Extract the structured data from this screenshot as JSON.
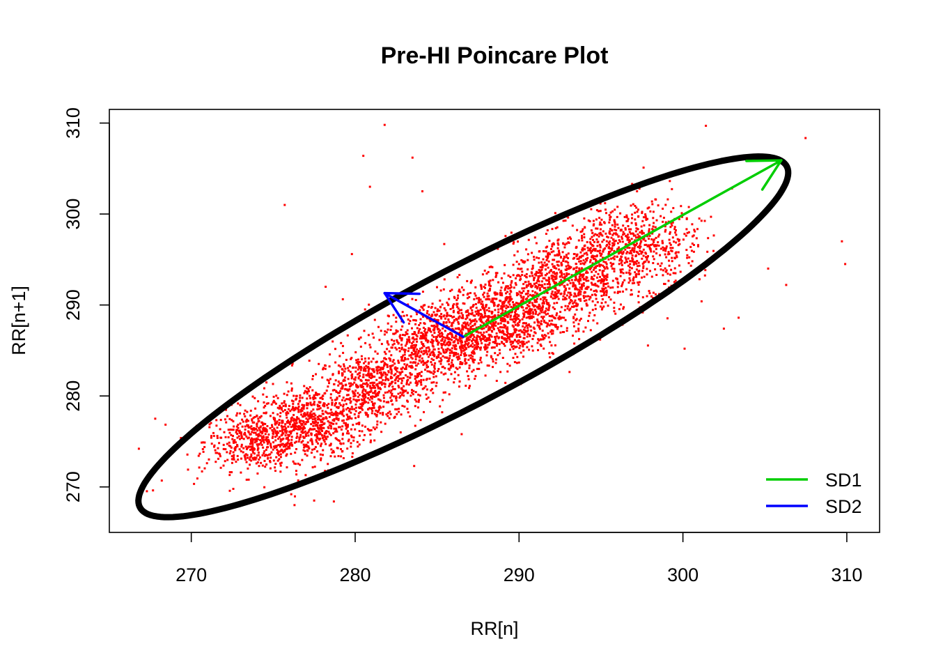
{
  "chart_data": {
    "type": "scatter",
    "title": "Pre-HI Poincare Plot",
    "xlabel": "RR[n]",
    "ylabel": "RR[n+1]",
    "xlim": [
      265,
      312
    ],
    "ylim": [
      265,
      311.5
    ],
    "xticks": [
      270,
      280,
      290,
      300,
      310
    ],
    "yticks": [
      270,
      280,
      290,
      300,
      310
    ],
    "grid": false,
    "legend_position": "bottom-right",
    "point_color": "#ff0000",
    "clusters": [
      {
        "cx": 274.0,
        "cy": 275.0,
        "sx": 1.6,
        "sy": 1.6,
        "n": 450
      },
      {
        "cx": 277.3,
        "cy": 277.0,
        "sx": 1.7,
        "sy": 2.0,
        "n": 600
      },
      {
        "cx": 281.0,
        "cy": 281.0,
        "sx": 1.6,
        "sy": 2.0,
        "n": 450
      },
      {
        "cx": 285.0,
        "cy": 286.0,
        "sx": 1.7,
        "sy": 2.2,
        "n": 550
      },
      {
        "cx": 289.0,
        "cy": 288.5,
        "sx": 1.8,
        "sy": 2.3,
        "n": 650
      },
      {
        "cx": 293.0,
        "cy": 292.5,
        "sx": 1.9,
        "sy": 2.3,
        "n": 650
      },
      {
        "cx": 297.0,
        "cy": 296.5,
        "sx": 1.9,
        "sy": 2.3,
        "n": 600
      }
    ],
    "diagonal_noise": {
      "center": 286.5,
      "along_sd": 8.5,
      "across_sd": 1.8,
      "n": 900
    },
    "outliers": [
      {
        "x": 281.8,
        "y": 309.8
      },
      {
        "x": 280.5,
        "y": 306.4
      },
      {
        "x": 283.5,
        "y": 306.2
      },
      {
        "x": 280.9,
        "y": 303.0
      },
      {
        "x": 284.1,
        "y": 302.5
      },
      {
        "x": 275.7,
        "y": 301.0
      },
      {
        "x": 301.4,
        "y": 309.7
      },
      {
        "x": 309.7,
        "y": 297.0
      },
      {
        "x": 309.9,
        "y": 294.5
      },
      {
        "x": 305.2,
        "y": 294.0
      },
      {
        "x": 306.3,
        "y": 292.2
      },
      {
        "x": 303.4,
        "y": 288.6
      },
      {
        "x": 301.0,
        "y": 299.5
      },
      {
        "x": 297.6,
        "y": 305.1
      },
      {
        "x": 266.8,
        "y": 274.2
      },
      {
        "x": 267.8,
        "y": 277.5
      },
      {
        "x": 268.2,
        "y": 270.7
      },
      {
        "x": 269.8,
        "y": 271.9
      },
      {
        "x": 276.3,
        "y": 268.0
      },
      {
        "x": 277.5,
        "y": 268.5
      },
      {
        "x": 278.7,
        "y": 268.4
      },
      {
        "x": 276.1,
        "y": 269.2
      },
      {
        "x": 286.5,
        "y": 275.8
      },
      {
        "x": 283.6,
        "y": 272.3
      },
      {
        "x": 296.9,
        "y": 303.3
      },
      {
        "x": 300.1,
        "y": 285.2
      },
      {
        "x": 302.5,
        "y": 287.4
      },
      {
        "x": 282.5,
        "y": 288.6
      },
      {
        "x": 279.8,
        "y": 295.6
      },
      {
        "x": 278.2,
        "y": 292.0
      }
    ],
    "ellipse": {
      "cx": 286.6,
      "cy": 286.5,
      "semi_major": 27.4,
      "semi_minor": 5.95,
      "angle_deg": 45,
      "color": "#000000"
    },
    "sd_arrows": [
      {
        "name": "SD1",
        "from": [
          286.6,
          286.5
        ],
        "to": [
          306.0,
          305.9
        ],
        "color": "#00cd00"
      },
      {
        "name": "SD2",
        "from": [
          286.6,
          286.5
        ],
        "to": [
          281.8,
          291.3
        ],
        "color": "#0000ff"
      }
    ],
    "legend": [
      {
        "label": "SD1",
        "color": "#00cd00"
      },
      {
        "label": "SD2",
        "color": "#0000ff"
      }
    ]
  }
}
